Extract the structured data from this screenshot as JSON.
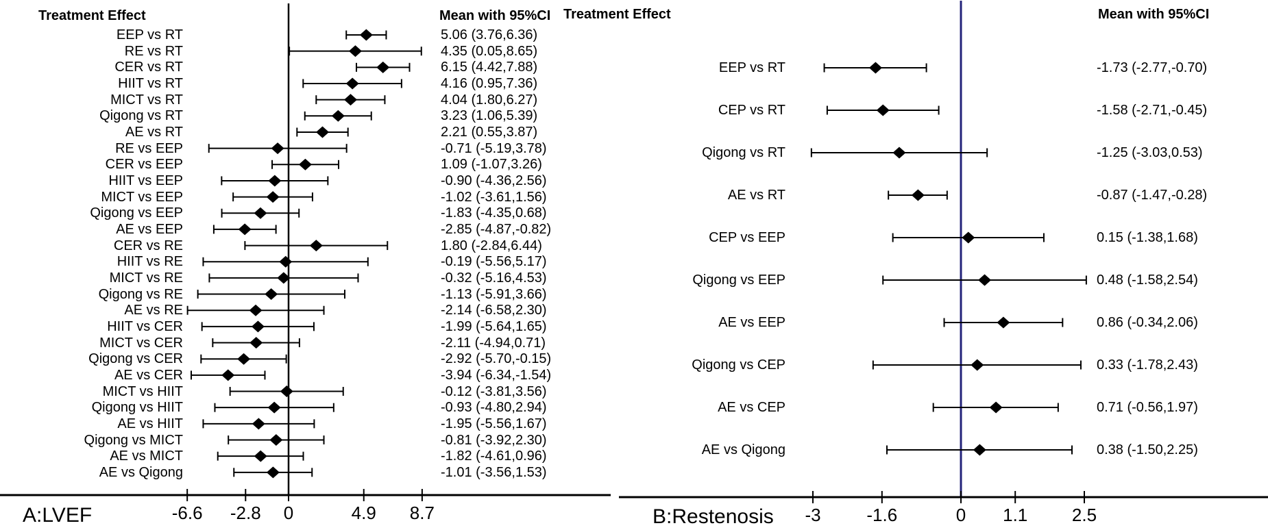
{
  "colors": {
    "background": "#ffffff",
    "text": "#000000",
    "marker": "#000000",
    "axis": "#000000",
    "zero_line_a": "#000000",
    "zero_line_b": "#23237a"
  },
  "chart_data": [
    {
      "type": "forest",
      "panel": "A",
      "title_left": "Treatment Effect",
      "title_right": "Mean with 95%CI",
      "footer": "A:LVEF",
      "x_axis": {
        "tick_values": [
          -6.6,
          -2.8,
          0,
          4.9,
          8.7
        ],
        "tick_labels": [
          "-6.6",
          "-2.8",
          "0",
          "4.9",
          "8.7"
        ],
        "zero_reference_line": 0
      },
      "rows": [
        {
          "label": "EEP vs RT",
          "mean": 5.06,
          "ci_low": 3.76,
          "ci_high": 6.36,
          "display": "5.06 (3.76,6.36)"
        },
        {
          "label": "RE vs RT",
          "mean": 4.35,
          "ci_low": 0.05,
          "ci_high": 8.65,
          "display": "4.35 (0.05,8.65)"
        },
        {
          "label": "CER vs RT",
          "mean": 6.15,
          "ci_low": 4.42,
          "ci_high": 7.88,
          "display": "6.15 (4.42,7.88)"
        },
        {
          "label": "HIIT vs RT",
          "mean": 4.16,
          "ci_low": 0.95,
          "ci_high": 7.36,
          "display": "4.16 (0.95,7.36)"
        },
        {
          "label": "MICT vs RT",
          "mean": 4.04,
          "ci_low": 1.8,
          "ci_high": 6.27,
          "display": "4.04 (1.80,6.27)"
        },
        {
          "label": "Qigong vs RT",
          "mean": 3.23,
          "ci_low": 1.06,
          "ci_high": 5.39,
          "display": "3.23 (1.06,5.39)"
        },
        {
          "label": "AE vs RT",
          "mean": 2.21,
          "ci_low": 0.55,
          "ci_high": 3.87,
          "display": "2.21 (0.55,3.87)"
        },
        {
          "label": "RE vs EEP",
          "mean": -0.71,
          "ci_low": -5.19,
          "ci_high": 3.78,
          "display": "-0.71 (-5.19,3.78)"
        },
        {
          "label": "CER vs EEP",
          "mean": 1.09,
          "ci_low": -1.07,
          "ci_high": 3.26,
          "display": "1.09 (-1.07,3.26)"
        },
        {
          "label": "HIIT vs EEP",
          "mean": -0.9,
          "ci_low": -4.36,
          "ci_high": 2.56,
          "display": "-0.90 (-4.36,2.56)"
        },
        {
          "label": "MICT vs EEP",
          "mean": -1.02,
          "ci_low": -3.61,
          "ci_high": 1.56,
          "display": "-1.02 (-3.61,1.56)"
        },
        {
          "label": "Qigong vs EEP",
          "mean": -1.83,
          "ci_low": -4.35,
          "ci_high": 0.68,
          "display": "-1.83 (-4.35,0.68)"
        },
        {
          "label": "AE vs EEP",
          "mean": -2.85,
          "ci_low": -4.87,
          "ci_high": -0.82,
          "display": "-2.85 (-4.87,-0.82)"
        },
        {
          "label": "CER vs RE",
          "mean": 1.8,
          "ci_low": -2.84,
          "ci_high": 6.44,
          "display": "1.80 (-2.84,6.44)"
        },
        {
          "label": "HIIT vs RE",
          "mean": -0.19,
          "ci_low": -5.56,
          "ci_high": 5.17,
          "display": "-0.19 (-5.56,5.17)"
        },
        {
          "label": "MICT vs RE",
          "mean": -0.32,
          "ci_low": -5.16,
          "ci_high": 4.53,
          "display": "-0.32 (-5.16,4.53)"
        },
        {
          "label": "Qigong vs RE",
          "mean": -1.13,
          "ci_low": -5.91,
          "ci_high": 3.66,
          "display": "-1.13 (-5.91,3.66)"
        },
        {
          "label": "AE vs RE",
          "mean": -2.14,
          "ci_low": -6.58,
          "ci_high": 2.3,
          "display": "-2.14 (-6.58,2.30)"
        },
        {
          "label": "HIIT vs CER",
          "mean": -1.99,
          "ci_low": -5.64,
          "ci_high": 1.65,
          "display": "-1.99 (-5.64,1.65)"
        },
        {
          "label": "MICT vs CER",
          "mean": -2.11,
          "ci_low": -4.94,
          "ci_high": 0.71,
          "display": "-2.11 (-4.94,0.71)"
        },
        {
          "label": "Qigong vs CER",
          "mean": -2.92,
          "ci_low": -5.7,
          "ci_high": -0.15,
          "display": "-2.92 (-5.70,-0.15)"
        },
        {
          "label": "AE vs CER",
          "mean": -3.94,
          "ci_low": -6.34,
          "ci_high": -1.54,
          "display": "-3.94 (-6.34,-1.54)"
        },
        {
          "label": "MICT vs HIIT",
          "mean": -0.12,
          "ci_low": -3.81,
          "ci_high": 3.56,
          "display": "-0.12 (-3.81,3.56)"
        },
        {
          "label": "Qigong vs HIIT",
          "mean": -0.93,
          "ci_low": -4.8,
          "ci_high": 2.94,
          "display": "-0.93 (-4.80,2.94)"
        },
        {
          "label": "AE vs HIIT",
          "mean": -1.95,
          "ci_low": -5.56,
          "ci_high": 1.67,
          "display": "-1.95 (-5.56,1.67)"
        },
        {
          "label": "Qigong vs MICT",
          "mean": -0.81,
          "ci_low": -3.92,
          "ci_high": 2.3,
          "display": "-0.81 (-3.92,2.30)"
        },
        {
          "label": "AE vs MICT",
          "mean": -1.82,
          "ci_low": -4.61,
          "ci_high": 0.96,
          "display": "-1.82 (-4.61,0.96)"
        },
        {
          "label": "AE vs Qigong",
          "mean": -1.01,
          "ci_low": -3.56,
          "ci_high": 1.53,
          "display": "-1.01 (-3.56,1.53)"
        }
      ]
    },
    {
      "type": "forest",
      "panel": "B",
      "title_left": "Treatment Effect",
      "title_right": "Mean with 95%CI",
      "footer": "B:Restenosis",
      "x_axis": {
        "tick_values": [
          -3,
          -1.6,
          0,
          1.1,
          2.5
        ],
        "tick_labels": [
          "-3",
          "-1.6",
          "0",
          "1.1",
          "2.5"
        ],
        "zero_reference_line": 0
      },
      "rows": [
        {
          "label": "EEP vs RT",
          "mean": -1.73,
          "ci_low": -2.77,
          "ci_high": -0.7,
          "display": "-1.73 (-2.77,-0.70)"
        },
        {
          "label": "CEP vs RT",
          "mean": -1.58,
          "ci_low": -2.71,
          "ci_high": -0.45,
          "display": "-1.58 (-2.71,-0.45)"
        },
        {
          "label": "Qigong vs RT",
          "mean": -1.25,
          "ci_low": -3.03,
          "ci_high": 0.53,
          "display": "-1.25 (-3.03,0.53)"
        },
        {
          "label": "AE vs RT",
          "mean": -0.87,
          "ci_low": -1.47,
          "ci_high": -0.28,
          "display": "-0.87 (-1.47,-0.28)"
        },
        {
          "label": "CEP vs EEP",
          "mean": 0.15,
          "ci_low": -1.38,
          "ci_high": 1.68,
          "display": "0.15 (-1.38,1.68)"
        },
        {
          "label": "Qigong vs EEP",
          "mean": 0.48,
          "ci_low": -1.58,
          "ci_high": 2.54,
          "display": "0.48 (-1.58,2.54)"
        },
        {
          "label": "AE vs EEP",
          "mean": 0.86,
          "ci_low": -0.34,
          "ci_high": 2.06,
          "display": "0.86 (-0.34,2.06)"
        },
        {
          "label": "Qigong vs CEP",
          "mean": 0.33,
          "ci_low": -1.78,
          "ci_high": 2.43,
          "display": "0.33 (-1.78,2.43)"
        },
        {
          "label": "AE vs CEP",
          "mean": 0.71,
          "ci_low": -0.56,
          "ci_high": 1.97,
          "display": "0.71 (-0.56,1.97)"
        },
        {
          "label": "AE vs Qigong",
          "mean": 0.38,
          "ci_low": -1.5,
          "ci_high": 2.25,
          "display": "0.38 (-1.50,2.25)"
        }
      ]
    }
  ]
}
